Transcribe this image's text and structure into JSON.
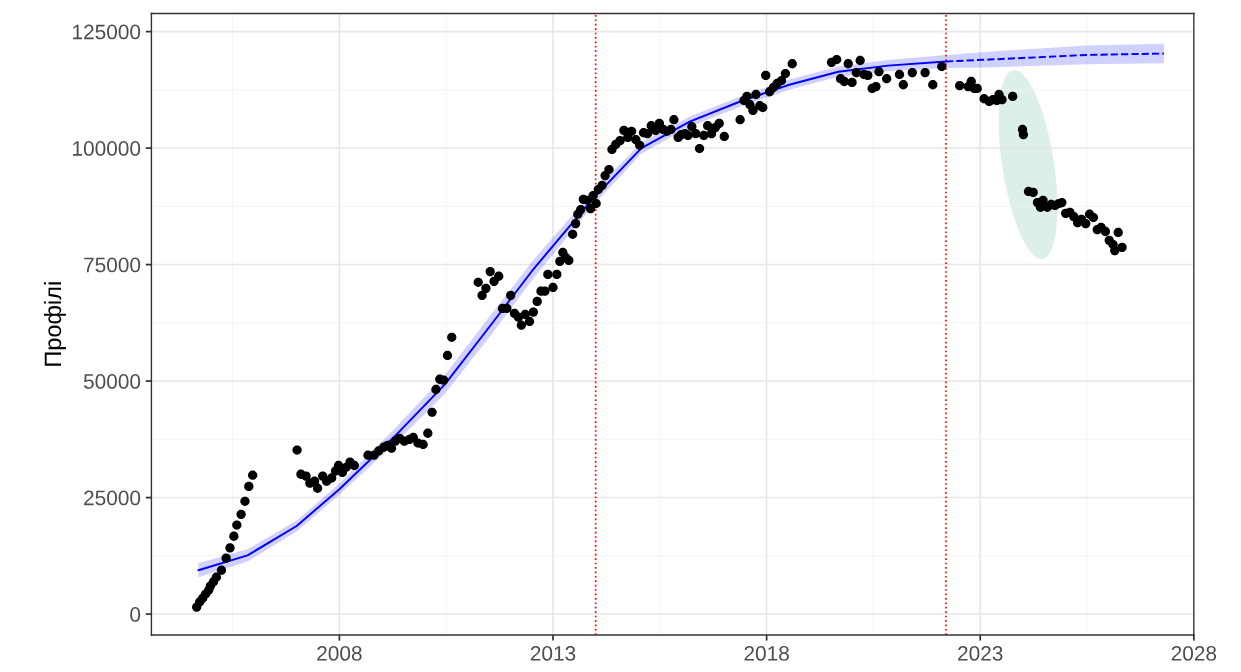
{
  "chart_data": {
    "type": "scatter",
    "ylabel": "Профілі",
    "xlim": [
      2003.6,
      2028
    ],
    "xticks": [
      2008,
      2013,
      2018,
      2023,
      2028
    ],
    "ylim": [
      -4500,
      128900
    ],
    "yticks": [
      0,
      25000,
      50000,
      75000,
      100000,
      125000
    ],
    "grid": true,
    "ref_lines": [
      {
        "axis": "x",
        "value": 2014.0,
        "color": "#ff0000",
        "line_style": "dotted"
      },
      {
        "axis": "x",
        "value": 2022.2,
        "color": "#ff0000",
        "line_style": "dotted"
      }
    ],
    "series": [
      {
        "type": "line",
        "color": "#0000ff",
        "line_style": "solid",
        "marker": "none",
        "x": [
          2004.7,
          2005.85,
          2007.0,
          2008.0,
          2009.3,
          2010.47,
          2011.5,
          2012.54,
          2013.92,
          2015.07,
          2016.2,
          2017.38,
          2018.53,
          2019.68,
          2020.84,
          2022.2
        ],
        "values": [
          9400,
          12600,
          18900,
          26800,
          38200,
          49300,
          61500,
          74000,
          89000,
          100000,
          105700,
          110000,
          113600,
          116400,
          117700,
          118600
        ],
        "lower": [
          7900,
          11300,
          17700,
          25600,
          36600,
          47300,
          59300,
          72000,
          87500,
          98800,
          104600,
          108900,
          112500,
          115300,
          116500,
          117200
        ],
        "upper": [
          10900,
          13900,
          20100,
          28000,
          39800,
          51300,
          63700,
          76000,
          90500,
          101200,
          106800,
          111100,
          114700,
          117500,
          118900,
          120000
        ]
      },
      {
        "type": "line",
        "color": "#0000ff",
        "line_style": "dashed",
        "marker": "none",
        "x": [
          2022.2,
          2023.2,
          2025.5,
          2027.3
        ],
        "values": [
          118600,
          119000,
          120000,
          120300
        ],
        "lower": [
          117200,
          117300,
          118000,
          118200
        ],
        "upper": [
          120000,
          120700,
          122000,
          122400
        ]
      },
      {
        "color": "#000000",
        "marker": "circle",
        "x": [
          2004.66,
          2004.73,
          2004.8,
          2004.87,
          2004.94,
          2004.98,
          2005.05,
          2005.12,
          2005.24,
          2005.35,
          2005.44,
          2005.53,
          2005.6,
          2005.7,
          2005.79,
          2005.88,
          2005.97,
          2007.01,
          2007.1,
          2007.22,
          2007.31,
          2007.42,
          2007.49,
          2007.61,
          2007.7,
          2007.82,
          2007.91,
          2007.98,
          2008.07,
          2008.16,
          2008.25,
          2008.35,
          2008.67,
          2008.81,
          2008.92,
          2009.04,
          2009.13,
          2009.22,
          2009.31,
          2009.41,
          2009.52,
          2009.64,
          2009.73,
          2009.84,
          2009.96,
          2010.07,
          2010.17,
          2010.26,
          2010.35,
          2010.44,
          2010.53,
          2010.63,
          2011.25,
          2011.34,
          2011.43,
          2011.53,
          2011.62,
          2011.73,
          2011.82,
          2011.92,
          2012.01,
          2012.1,
          2012.19,
          2012.26,
          2012.35,
          2012.45,
          2012.54,
          2012.63,
          2012.72,
          2012.81,
          2012.88,
          2013.0,
          2013.09,
          2013.16,
          2013.23,
          2013.3,
          2013.37,
          2013.46,
          2013.53,
          2013.58,
          2013.65,
          2013.71,
          2013.81,
          2013.88,
          2013.94,
          2014.01,
          2014.06,
          2014.15,
          2014.22,
          2014.31,
          2014.38,
          2014.47,
          2014.57,
          2014.66,
          2014.75,
          2014.84,
          2014.94,
          2015.03,
          2015.12,
          2015.21,
          2015.3,
          2015.4,
          2015.49,
          2015.58,
          2015.67,
          2015.76,
          2015.83,
          2015.93,
          2016.0,
          2016.09,
          2016.16,
          2016.25,
          2016.34,
          2016.43,
          2016.53,
          2016.62,
          2016.71,
          2016.8,
          2016.89,
          2017.01,
          2017.38,
          2017.47,
          2017.54,
          2017.61,
          2017.68,
          2017.75,
          2017.84,
          2017.91,
          2017.98,
          2018.07,
          2018.16,
          2018.25,
          2018.35,
          2018.44,
          2018.6,
          2019.52,
          2019.64,
          2019.73,
          2019.82,
          2019.91,
          2020.0,
          2020.1,
          2020.19,
          2020.28,
          2020.37,
          2020.47,
          2020.56,
          2020.63,
          2020.81,
          2021.11,
          2021.2,
          2021.41,
          2021.71,
          2021.89,
          2022.1,
          2022.52,
          2022.72,
          2022.79,
          2022.86,
          2022.93,
          2023.09,
          2023.21,
          2023.3,
          2023.39,
          2023.44,
          2023.51,
          2023.76,
          2023.99,
          2024.01,
          2024.13,
          2024.24,
          2024.34,
          2024.41,
          2024.47,
          2024.57,
          2024.66,
          2024.75,
          2024.84,
          2024.91,
          2025.0,
          2025.1,
          2025.19,
          2025.28,
          2025.37,
          2025.47,
          2025.56,
          2025.65,
          2025.74,
          2025.83,
          2025.93,
          2026.02,
          2026.11,
          2026.15,
          2026.23,
          2026.32
        ],
        "values": [
          1500,
          2600,
          3400,
          4300,
          5100,
          6000,
          6900,
          7900,
          9400,
          12000,
          14200,
          16700,
          19100,
          21400,
          24200,
          27400,
          29800,
          35200,
          30000,
          29600,
          28100,
          28500,
          27000,
          29600,
          28500,
          29200,
          30700,
          31900,
          30400,
          31500,
          32600,
          31900,
          34100,
          34100,
          35000,
          35800,
          36200,
          35600,
          37100,
          37700,
          37100,
          37500,
          37900,
          36700,
          36400,
          38800,
          43300,
          48200,
          50400,
          50200,
          55500,
          59400,
          71200,
          68400,
          69900,
          73500,
          71400,
          72500,
          65600,
          65600,
          68400,
          64500,
          63700,
          62000,
          64300,
          62800,
          64800,
          67100,
          69300,
          69300,
          72900,
          70100,
          72900,
          75700,
          77600,
          76500,
          75900,
          81500,
          83800,
          85800,
          86800,
          89000,
          88800,
          87000,
          89800,
          88100,
          91100,
          92000,
          94100,
          95400,
          99700,
          100800,
          101600,
          103800,
          102300,
          103600,
          101800,
          100600,
          103300,
          103100,
          104800,
          103800,
          105300,
          104000,
          103600,
          104000,
          106100,
          102300,
          102900,
          103100,
          102700,
          104600,
          103100,
          99900,
          102700,
          104800,
          103100,
          104400,
          105300,
          102500,
          106100,
          110200,
          111100,
          109300,
          108100,
          111500,
          109100,
          108700,
          115600,
          112100,
          113000,
          113900,
          114500,
          116000,
          118100,
          118400,
          119000,
          114900,
          114300,
          118100,
          114100,
          116200,
          118800,
          115800,
          115600,
          112800,
          113200,
          116400,
          114900,
          115800,
          113600,
          116200,
          116200,
          113600,
          117500,
          113400,
          113200,
          114300,
          112800,
          112800,
          110600,
          110000,
          110400,
          110200,
          111500,
          110400,
          111100,
          104000,
          102900,
          90700,
          90500,
          88300,
          87300,
          88800,
          87300,
          87900,
          87700,
          88100,
          88300,
          86000,
          86200,
          85300,
          84000,
          84700,
          83800,
          85800,
          85100,
          82500,
          83000,
          82100,
          80200,
          79300,
          78000,
          81900,
          78700
        ]
      }
    ]
  }
}
